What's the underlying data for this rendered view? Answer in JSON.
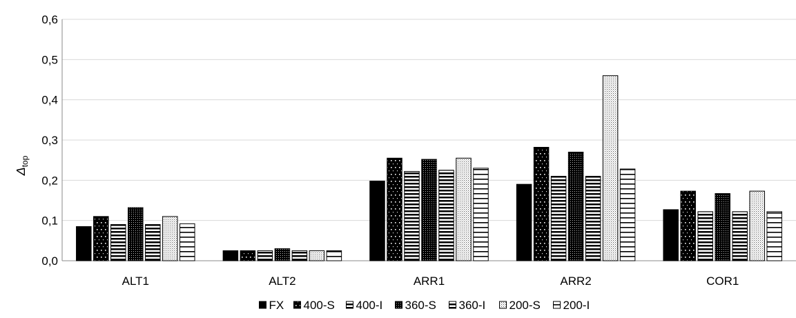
{
  "chart_data": {
    "type": "bar",
    "categories": [
      "ALT1",
      "ALT2",
      "ARR1",
      "ARR2",
      "COR1"
    ],
    "series": [
      {
        "name": "FX",
        "values": [
          0.085,
          0.025,
          0.198,
          0.19,
          0.127
        ],
        "pattern": "solid"
      },
      {
        "name": "400-S",
        "values": [
          0.11,
          0.025,
          0.255,
          0.282,
          0.173
        ],
        "pattern": "sparse-dots"
      },
      {
        "name": "400-I",
        "values": [
          0.09,
          0.025,
          0.222,
          0.21,
          0.122
        ],
        "pattern": "horizontal-lines"
      },
      {
        "name": "360-S",
        "values": [
          0.132,
          0.03,
          0.252,
          0.27,
          0.167
        ],
        "pattern": "dense-grid"
      },
      {
        "name": "360-I",
        "values": [
          0.09,
          0.025,
          0.225,
          0.21,
          0.122
        ],
        "pattern": "horizontal-lines"
      },
      {
        "name": "200-S",
        "values": [
          0.11,
          0.025,
          0.255,
          0.46,
          0.173
        ],
        "pattern": "light-dots"
      },
      {
        "name": "200-I",
        "values": [
          0.092,
          0.025,
          0.23,
          0.228,
          0.122
        ],
        "pattern": "wide-lines"
      }
    ],
    "yticks": [
      "0,0",
      "0,1",
      "0,2",
      "0,3",
      "0,4",
      "0,5",
      "0,6"
    ],
    "ylim": [
      0,
      0.6
    ],
    "ylabel": "Δ",
    "ylabel_sub": "top",
    "xlabel": "",
    "grid": true,
    "legend_position": "bottom-center"
  }
}
